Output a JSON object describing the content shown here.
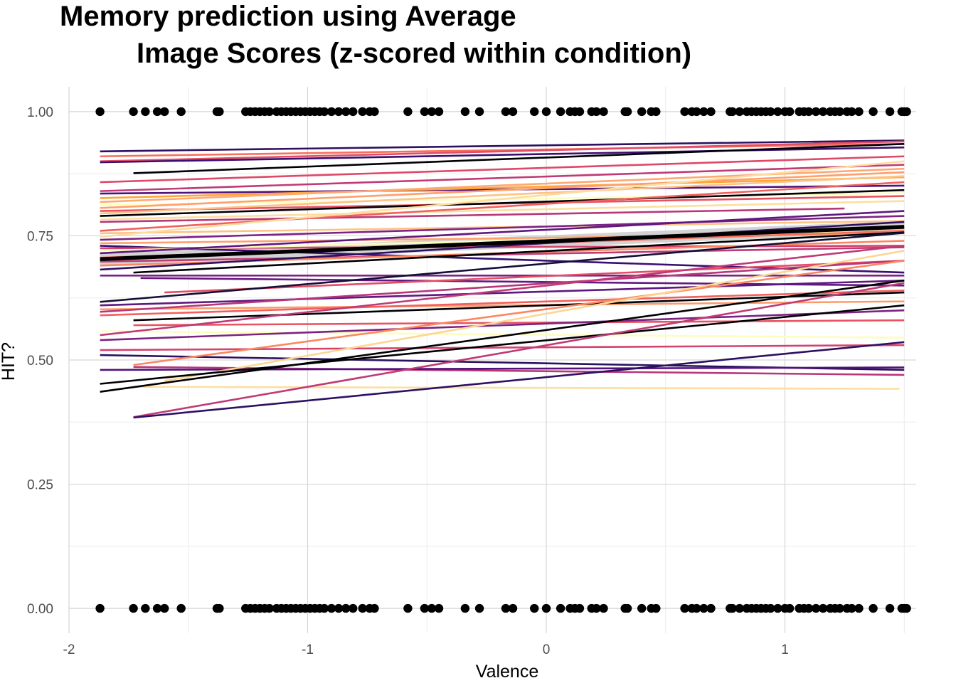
{
  "chart_data": {
    "type": "line",
    "title": {
      "line1": "Memory prediction using Average",
      "line2": "Image Scores (z-scored within condition)"
    },
    "xlabel": "Valence",
    "ylabel": "HIT?",
    "xlim": [
      -2.0,
      1.55
    ],
    "ylim": [
      -0.05,
      1.05
    ],
    "x_ticks": [
      {
        "value": -2,
        "label": "-2"
      },
      {
        "value": -1,
        "label": "-1"
      },
      {
        "value": 0,
        "label": "0"
      },
      {
        "value": 1,
        "label": "1"
      }
    ],
    "y_ticks": [
      {
        "value": 0.0,
        "label": "0.00"
      },
      {
        "value": 0.25,
        "label": "0.25"
      },
      {
        "value": 0.5,
        "label": "0.50"
      },
      {
        "value": 0.75,
        "label": "0.75"
      },
      {
        "value": 1.0,
        "label": "1.00"
      }
    ],
    "grid": true,
    "legend": "none",
    "points_x": [
      -1.87,
      -1.73,
      -1.68,
      -1.63,
      -1.6,
      -1.53,
      -1.38,
      -1.37,
      -1.26,
      -1.24,
      -1.22,
      -1.2,
      -1.18,
      -1.16,
      -1.13,
      -1.11,
      -1.09,
      -1.07,
      -1.05,
      -1.03,
      -1.01,
      -0.99,
      -0.97,
      -0.95,
      -0.93,
      -0.9,
      -0.87,
      -0.84,
      -0.81,
      -0.77,
      -0.74,
      -0.72,
      -0.58,
      -0.51,
      -0.48,
      -0.45,
      -0.34,
      -0.28,
      -0.17,
      -0.14,
      -0.05,
      0.0,
      0.06,
      0.1,
      0.12,
      0.14,
      0.19,
      0.21,
      0.24,
      0.33,
      0.34,
      0.4,
      0.44,
      0.46,
      0.58,
      0.61,
      0.63,
      0.66,
      0.69,
      0.77,
      0.78,
      0.81,
      0.84,
      0.86,
      0.88,
      0.9,
      0.92,
      0.94,
      0.97,
      1.0,
      1.02,
      1.06,
      1.08,
      1.1,
      1.13,
      1.16,
      1.19,
      1.21,
      1.23,
      1.26,
      1.28,
      1.31,
      1.37,
      1.44,
      1.49,
      1.5,
      1.51
    ],
    "points_y": [
      0,
      1
    ],
    "point_color": "#000000",
    "overall_fit": {
      "x": [
        -1.87,
        1.5
      ],
      "y": [
        0.703,
        0.768
      ],
      "color": "#000000",
      "band_color": "#c8c8c8"
    },
    "series": [
      {
        "x": [
          -1.87,
          1.5
        ],
        "y": [
          0.92,
          0.942
        ],
        "color": "#2d1160"
      },
      {
        "x": [
          -1.87,
          1.5
        ],
        "y": [
          0.91,
          0.935
        ],
        "color": "#f7705c"
      },
      {
        "x": [
          -1.87,
          1.5
        ],
        "y": [
          0.9,
          0.94
        ],
        "color": "#e34e65"
      },
      {
        "x": [
          -1.87,
          1.5
        ],
        "y": [
          0.898,
          0.928
        ],
        "color": "#3b0f70"
      },
      {
        "x": [
          -1.73,
          1.5
        ],
        "y": [
          0.876,
          0.935
        ],
        "color": "#000004"
      },
      {
        "x": [
          -1.87,
          1.5
        ],
        "y": [
          0.858,
          0.91
        ],
        "color": "#de4968"
      },
      {
        "x": [
          -1.87,
          1.5
        ],
        "y": [
          0.84,
          0.893
        ],
        "color": "#c03a76"
      },
      {
        "x": [
          -1.87,
          1.5
        ],
        "y": [
          0.835,
          0.851
        ],
        "color": "#51127c"
      },
      {
        "x": [
          -1.87,
          1.5
        ],
        "y": [
          0.826,
          0.868
        ],
        "color": "#fca636"
      },
      {
        "x": [
          -1.87,
          1.5
        ],
        "y": [
          0.818,
          0.885
        ],
        "color": "#fea873"
      },
      {
        "x": [
          -1.87,
          1.5
        ],
        "y": [
          0.812,
          0.836
        ],
        "color": "#fcfdbf"
      },
      {
        "x": [
          -1.87,
          1.5
        ],
        "y": [
          0.806,
          0.878
        ],
        "color": "#fe9f6d"
      },
      {
        "x": [
          -1.87,
          1.5
        ],
        "y": [
          0.8,
          0.83
        ],
        "color": "#e85362"
      },
      {
        "x": [
          -1.87,
          1.5
        ],
        "y": [
          0.795,
          0.87
        ],
        "color": "#fec287"
      },
      {
        "x": [
          -1.87,
          1.5
        ],
        "y": [
          0.79,
          0.842
        ],
        "color": "#000004"
      },
      {
        "x": [
          -1.87,
          1.5
        ],
        "y": [
          0.783,
          0.82
        ],
        "color": "#fddea0"
      },
      {
        "x": [
          -1.87,
          1.25
        ],
        "y": [
          0.778,
          0.805
        ],
        "color": "#b73779"
      },
      {
        "x": [
          -1.87,
          1.5
        ],
        "y": [
          0.76,
          0.858
        ],
        "color": "#f1605d"
      },
      {
        "x": [
          -1.87,
          1.5
        ],
        "y": [
          0.755,
          0.78
        ],
        "color": "#fec287"
      },
      {
        "x": [
          -1.87,
          1.5
        ],
        "y": [
          0.748,
          0.9
        ],
        "color": "#fddc9e"
      },
      {
        "x": [
          -1.87,
          1.5
        ],
        "y": [
          0.742,
          0.79
        ],
        "color": "#7c2382"
      },
      {
        "x": [
          -1.87,
          1.5
        ],
        "y": [
          0.735,
          0.755
        ],
        "color": "#fea16e"
      },
      {
        "x": [
          -1.87,
          1.5
        ],
        "y": [
          0.73,
          0.676
        ],
        "color": "#3b0f70"
      },
      {
        "x": [
          -1.87,
          1.5
        ],
        "y": [
          0.725,
          0.73
        ],
        "color": "#d3436e"
      },
      {
        "x": [
          -1.87,
          1.5
        ],
        "y": [
          0.72,
          0.76
        ],
        "color": "#fcfdbf"
      },
      {
        "x": [
          -1.87,
          1.5
        ],
        "y": [
          0.715,
          0.8
        ],
        "color": "#5f187f"
      },
      {
        "x": [
          -1.87,
          1.5
        ],
        "y": [
          0.706,
          0.76
        ],
        "color": "#f76f5c"
      },
      {
        "x": [
          -1.87,
          1.5
        ],
        "y": [
          0.698,
          0.727
        ],
        "color": "#c03a76"
      },
      {
        "x": [
          -1.87,
          1.5
        ],
        "y": [
          0.69,
          0.74
        ],
        "color": "#fb8761"
      },
      {
        "x": [
          -1.87,
          1.5
        ],
        "y": [
          0.682,
          0.778
        ],
        "color": "#2d1160"
      },
      {
        "x": [
          -1.73,
          1.5
        ],
        "y": [
          0.676,
          0.757
        ],
        "color": "#000004"
      },
      {
        "x": [
          -1.87,
          1.5
        ],
        "y": [
          0.67,
          0.67
        ],
        "color": "#7c2382"
      },
      {
        "x": [
          -1.7,
          1.5
        ],
        "y": [
          0.665,
          0.65
        ],
        "color": "#641a80"
      },
      {
        "x": [
          -1.6,
          1.5
        ],
        "y": [
          0.636,
          0.7
        ],
        "color": "#e34e65"
      },
      {
        "x": [
          -1.87,
          1.5
        ],
        "y": [
          0.617,
          0.756
        ],
        "color": "#150e37"
      },
      {
        "x": [
          -1.87,
          1.5
        ],
        "y": [
          0.61,
          0.66
        ],
        "color": "#5f187f"
      },
      {
        "x": [
          -1.87,
          1.5
        ],
        "y": [
          0.602,
          0.618
        ],
        "color": "#fd9a6a"
      },
      {
        "x": [
          -1.87,
          1.5
        ],
        "y": [
          0.597,
          0.7
        ],
        "color": "#b73779"
      },
      {
        "x": [
          -1.87,
          1.5
        ],
        "y": [
          0.59,
          0.64
        ],
        "color": "#f1605d"
      },
      {
        "x": [
          -1.73,
          1.5
        ],
        "y": [
          0.58,
          0.636
        ],
        "color": "#000004"
      },
      {
        "x": [
          -1.73,
          1.5
        ],
        "y": [
          0.57,
          0.58
        ],
        "color": "#e85362"
      },
      {
        "x": [
          -1.87,
          1.5
        ],
        "y": [
          0.558,
          0.545
        ],
        "color": "#fcfdbf"
      },
      {
        "x": [
          -1.87,
          1.5
        ],
        "y": [
          0.55,
          0.73
        ],
        "color": "#c03a76"
      },
      {
        "x": [
          -1.87,
          1.5
        ],
        "y": [
          0.54,
          0.6
        ],
        "color": "#7c2382"
      },
      {
        "x": [
          -1.87,
          1.5
        ],
        "y": [
          0.52,
          0.53
        ],
        "color": "#d3436e"
      },
      {
        "x": [
          -1.87,
          1.5
        ],
        "y": [
          0.51,
          0.48
        ],
        "color": "#2d1160"
      },
      {
        "x": [
          -1.73,
          1.5
        ],
        "y": [
          0.49,
          0.7
        ],
        "color": "#fb8761"
      },
      {
        "x": [
          -1.73,
          1.5
        ],
        "y": [
          0.486,
          0.47
        ],
        "color": "#b73779"
      },
      {
        "x": [
          -1.87,
          1.5
        ],
        "y": [
          0.48,
          0.485
        ],
        "color": "#51127c"
      },
      {
        "x": [
          -1.6,
          1.5
        ],
        "y": [
          0.458,
          0.72
        ],
        "color": "#fcd692"
      },
      {
        "x": [
          -1.87,
          1.5
        ],
        "y": [
          0.452,
          0.61
        ],
        "color": "#000004"
      },
      {
        "x": [
          -1.73,
          1.48
        ],
        "y": [
          0.446,
          0.442
        ],
        "color": "#fddea0"
      },
      {
        "x": [
          -1.87,
          1.5
        ],
        "y": [
          0.436,
          0.66
        ],
        "color": "#000004"
      },
      {
        "x": [
          -1.73,
          1.5
        ],
        "y": [
          0.385,
          0.655
        ],
        "color": "#c03a76"
      },
      {
        "x": [
          -1.73,
          1.5
        ],
        "y": [
          0.384,
          0.536
        ],
        "color": "#2d1160"
      }
    ]
  }
}
